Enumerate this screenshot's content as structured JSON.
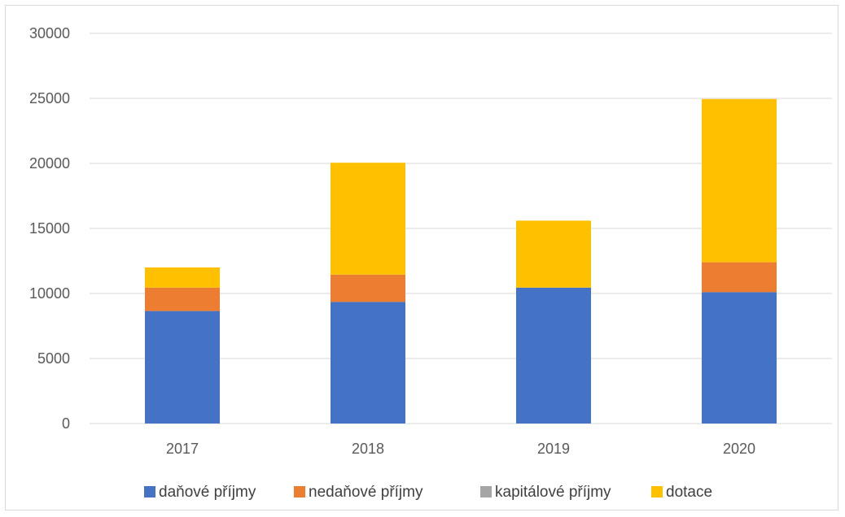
{
  "chart_data": {
    "type": "bar",
    "stacked": true,
    "categories": [
      "2017",
      "2018",
      "2019",
      "2020"
    ],
    "series": [
      {
        "name": "daňové příjmy",
        "color": "#4472C4",
        "values": [
          8650,
          9350,
          10450,
          10100
        ]
      },
      {
        "name": "nedaňové příjmy",
        "color": "#ED7D31",
        "values": [
          1800,
          2100,
          0,
          2300
        ]
      },
      {
        "name": "kapitálové příjmy",
        "color": "#A5A5A5",
        "values": [
          0,
          0,
          0,
          0
        ]
      },
      {
        "name": "dotace",
        "color": "#FFC000",
        "values": [
          1550,
          8600,
          5150,
          12550
        ]
      }
    ],
    "yticks": [
      "0",
      "5000",
      "10000",
      "15000",
      "20000",
      "25000",
      "30000"
    ],
    "ylim": [
      0,
      30000
    ],
    "title": "",
    "xlabel": "",
    "ylabel": "",
    "grid": true,
    "legend_position": "bottom"
  }
}
